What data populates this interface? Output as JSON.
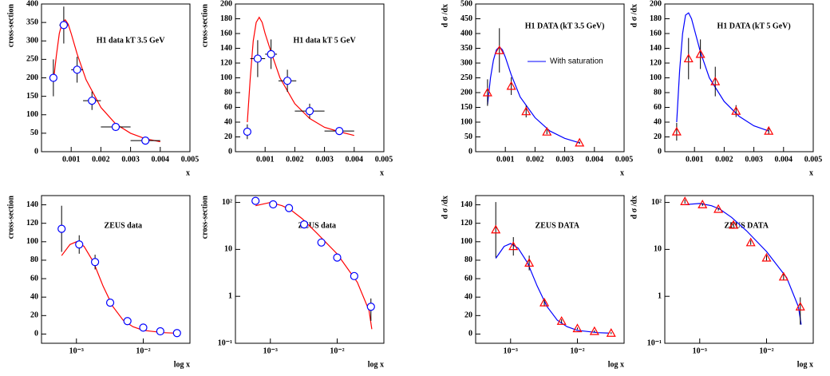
{
  "chart_data": [
    {
      "type": "scatter",
      "ylabel": "cross-section",
      "xlabel": "x",
      "annotation": "H1 data kT  3.5 GeV",
      "xlim": [
        0,
        0.005
      ],
      "xticks": [
        0.001,
        0.002,
        0.003,
        0.004,
        0.005
      ],
      "ylim": [
        0,
        400
      ],
      "yticks": [
        0,
        50,
        100,
        150,
        200,
        250,
        300,
        350,
        400
      ],
      "marker": "circle",
      "marker_color": "#0000ff",
      "curve_color": "#ff0000",
      "x": [
        0.0004,
        0.00075,
        0.0012,
        0.0017,
        0.0025,
        0.0035
      ],
      "values": [
        200,
        343,
        222,
        138,
        67,
        30
      ],
      "yerr": [
        50,
        50,
        35,
        25,
        10,
        5
      ],
      "xerr": [
        0.0001,
        0.00015,
        0.0002,
        0.0003,
        0.0005,
        0.0005
      ],
      "curve_x": [
        0.0004,
        0.0005,
        0.0006,
        0.0007,
        0.0008,
        0.0009,
        0.001,
        0.0012,
        0.0015,
        0.002,
        0.0025,
        0.003,
        0.0035,
        0.004
      ],
      "curve_y": [
        190,
        260,
        320,
        350,
        357,
        345,
        320,
        265,
        195,
        120,
        75,
        50,
        35,
        27
      ]
    },
    {
      "type": "scatter",
      "ylabel": "cross-section",
      "xlabel": "x",
      "annotation": "H1 data kT  5 GeV",
      "xlim": [
        0,
        0.005
      ],
      "xticks": [
        0.001,
        0.002,
        0.003,
        0.004,
        0.005
      ],
      "ylim": [
        0,
        200
      ],
      "yticks": [
        0,
        20,
        40,
        60,
        80,
        100,
        120,
        140,
        160,
        180,
        200
      ],
      "marker": "circle",
      "marker_color": "#0000ff",
      "curve_color": "#ff0000",
      "x": [
        0.0004,
        0.00075,
        0.0012,
        0.00175,
        0.0025,
        0.0035
      ],
      "values": [
        27,
        126,
        132,
        96,
        55,
        28
      ],
      "yerr": [
        10,
        25,
        20,
        15,
        10,
        5
      ],
      "xerr": [
        0.0001,
        0.00025,
        0.0002,
        0.0003,
        0.0005,
        0.0005
      ],
      "curve_x": [
        0.0004,
        0.0005,
        0.0006,
        0.0007,
        0.0008,
        0.0009,
        0.001,
        0.0012,
        0.0015,
        0.002,
        0.0025,
        0.003,
        0.0035,
        0.004
      ],
      "curve_y": [
        40,
        100,
        150,
        175,
        182,
        175,
        160,
        135,
        100,
        65,
        45,
        33,
        27,
        22
      ]
    },
    {
      "type": "scatter",
      "ylabel": "d σ /dx",
      "xlabel": "x",
      "annotation": "H1 DATA (kT  3.5 GeV)",
      "legend": "With saturation",
      "xlim": [
        0,
        0.005
      ],
      "xticks": [
        0.001,
        0.002,
        0.003,
        0.004,
        0.005
      ],
      "ylim": [
        0,
        500
      ],
      "yticks": [
        0,
        50,
        100,
        150,
        200,
        250,
        300,
        350,
        400,
        450,
        500
      ],
      "marker": "triangle",
      "marker_color": "#ff0000",
      "curve_color": "#0000ff",
      "x": [
        0.0004,
        0.0008,
        0.0012,
        0.0017,
        0.0024,
        0.0035
      ],
      "values": [
        200,
        343,
        222,
        136,
        67,
        30
      ],
      "yerr": [
        45,
        75,
        30,
        20,
        8,
        4
      ],
      "curve_x": [
        0.0004,
        0.0005,
        0.0006,
        0.0007,
        0.0008,
        0.0009,
        0.001,
        0.0012,
        0.0015,
        0.002,
        0.0025,
        0.003,
        0.0035
      ],
      "curve_y": [
        160,
        250,
        310,
        345,
        355,
        345,
        320,
        260,
        185,
        115,
        70,
        45,
        30
      ]
    },
    {
      "type": "scatter",
      "ylabel": "d σ /dx",
      "xlabel": "x",
      "annotation": "H1 DATA (kT  5 GeV)",
      "xlim": [
        0,
        0.005
      ],
      "xticks": [
        0.001,
        0.002,
        0.003,
        0.004,
        0.005
      ],
      "ylim": [
        0,
        200
      ],
      "yticks": [
        0,
        20,
        40,
        60,
        80,
        100,
        120,
        140,
        160,
        180,
        200
      ],
      "marker": "triangle",
      "marker_color": "#ff0000",
      "curve_color": "#0000ff",
      "x": [
        0.0004,
        0.0008,
        0.0012,
        0.0017,
        0.0024,
        0.0035
      ],
      "values": [
        27,
        126,
        132,
        95,
        55,
        28
      ],
      "yerr": [
        12,
        28,
        20,
        20,
        8,
        4
      ],
      "curve_x": [
        0.0004,
        0.0005,
        0.0006,
        0.0007,
        0.0008,
        0.0009,
        0.001,
        0.0012,
        0.0015,
        0.002,
        0.0025,
        0.003,
        0.0035
      ],
      "curve_y": [
        40,
        110,
        160,
        185,
        188,
        180,
        165,
        135,
        100,
        68,
        48,
        35,
        28
      ]
    },
    {
      "type": "scatter",
      "ylabel": "cross-section",
      "xlabel": "log x",
      "annotation": "ZEUS data",
      "xlog": true,
      "xlim": [
        0.0003,
        0.05
      ],
      "xticks": [
        {
          "value": 0.001,
          "label": "10⁻³"
        },
        {
          "value": 0.01,
          "label": "10⁻²"
        }
      ],
      "ylim": [
        -10,
        150
      ],
      "yticks": [
        0,
        20,
        40,
        60,
        80,
        100,
        120,
        140
      ],
      "marker": "circle",
      "marker_color": "#0000ff",
      "curve_color": "#ff0000",
      "x": [
        0.0006,
        0.0011,
        0.0019,
        0.0032,
        0.0058,
        0.01,
        0.018,
        0.032
      ],
      "values": [
        114,
        97,
        78,
        34,
        14,
        7,
        3,
        1
      ],
      "yerr": [
        25,
        10,
        8,
        4,
        2,
        1,
        1,
        1
      ],
      "curve_x": [
        0.0006,
        0.0008,
        0.001,
        0.0013,
        0.0018,
        0.0025,
        0.0035,
        0.005,
        0.007,
        0.01,
        0.02,
        0.03
      ],
      "curve_y": [
        85,
        97,
        100,
        95,
        78,
        52,
        30,
        15,
        8,
        4,
        1.5,
        1
      ]
    },
    {
      "type": "scatter",
      "ylabel": "cross-section",
      "xlabel": "log x",
      "annotation": "ZEUS data",
      "xlog": true,
      "ylog": true,
      "xlim": [
        0.0003,
        0.05
      ],
      "xticks": [
        {
          "value": 0.001,
          "label": "10⁻³"
        },
        {
          "value": 0.01,
          "label": "10⁻²"
        }
      ],
      "ylim": [
        0.1,
        140
      ],
      "yticks": [
        {
          "value": 0.1,
          "label": "10⁻¹"
        },
        1,
        10,
        {
          "value": 100,
          "label": "10²"
        }
      ],
      "marker": "circle",
      "marker_color": "#0000ff",
      "curve_color": "#ff0000",
      "x": [
        0.0006,
        0.0011,
        0.0019,
        0.0032,
        0.0058,
        0.01,
        0.018,
        0.032
      ],
      "values": [
        108,
        91,
        76,
        34,
        14,
        6.7,
        2.7,
        0.6
      ],
      "yerr": [
        10,
        6,
        5,
        3,
        1.5,
        0.8,
        0.4,
        0.3
      ],
      "curve_x": [
        0.0006,
        0.001,
        0.0015,
        0.002,
        0.003,
        0.005,
        0.01,
        0.02,
        0.03,
        0.033
      ],
      "curve_y": [
        85,
        100,
        85,
        70,
        45,
        22,
        8,
        2,
        0.5,
        0.2
      ]
    },
    {
      "type": "scatter",
      "ylabel": "d σ /dx",
      "xlabel": "log x",
      "annotation": "ZEUS DATA",
      "xlog": true,
      "xlim": [
        0.0003,
        0.05
      ],
      "xticks": [
        {
          "value": 0.001,
          "label": "10⁻³"
        },
        {
          "value": 0.01,
          "label": "10⁻²"
        }
      ],
      "ylim": [
        -10,
        150
      ],
      "yticks": [
        0,
        20,
        40,
        60,
        80,
        100,
        120,
        140
      ],
      "marker": "triangle",
      "marker_color": "#ff0000",
      "curve_color": "#0000ff",
      "x": [
        0.0006,
        0.0011,
        0.0019,
        0.0032,
        0.0058,
        0.01,
        0.018,
        0.032
      ],
      "values": [
        113,
        95,
        77,
        34,
        14,
        6,
        3,
        1
      ],
      "yerr": [
        30,
        10,
        8,
        4,
        2,
        1,
        1,
        1
      ],
      "curve_x": [
        0.0006,
        0.0008,
        0.001,
        0.0013,
        0.0018,
        0.0025,
        0.0035,
        0.005,
        0.007,
        0.01,
        0.02,
        0.03
      ],
      "curve_y": [
        82,
        95,
        98,
        93,
        77,
        52,
        30,
        15,
        8,
        4,
        1.5,
        1
      ]
    },
    {
      "type": "scatter",
      "ylabel": "d σ /dx",
      "xlabel": "log x",
      "annotation": "ZEUS DATA",
      "xlog": true,
      "ylog": true,
      "xlim": [
        0.0003,
        0.05
      ],
      "xticks": [
        {
          "value": 0.001,
          "label": "10⁻³"
        },
        {
          "value": 0.01,
          "label": "10⁻²"
        }
      ],
      "ylim": [
        0.1,
        140
      ],
      "yticks": [
        {
          "value": 0.1,
          "label": "10⁻¹"
        },
        1,
        10,
        {
          "value": 100,
          "label": "10²"
        }
      ],
      "marker": "triangle",
      "marker_color": "#ff0000",
      "curve_color": "#0000ff",
      "x": [
        0.0006,
        0.0011,
        0.0019,
        0.0032,
        0.0058,
        0.01,
        0.018,
        0.032
      ],
      "values": [
        105,
        90,
        72,
        33,
        14,
        6.6,
        2.6,
        0.6
      ],
      "yerr": [
        10,
        6,
        5,
        3,
        1.5,
        0.8,
        0.4,
        0.35
      ],
      "curve_x": [
        0.0006,
        0.001,
        0.0015,
        0.002,
        0.003,
        0.005,
        0.01,
        0.02,
        0.03,
        0.033
      ],
      "curve_y": [
        90,
        95,
        85,
        72,
        48,
        25,
        9,
        2.5,
        0.6,
        0.25
      ]
    }
  ]
}
